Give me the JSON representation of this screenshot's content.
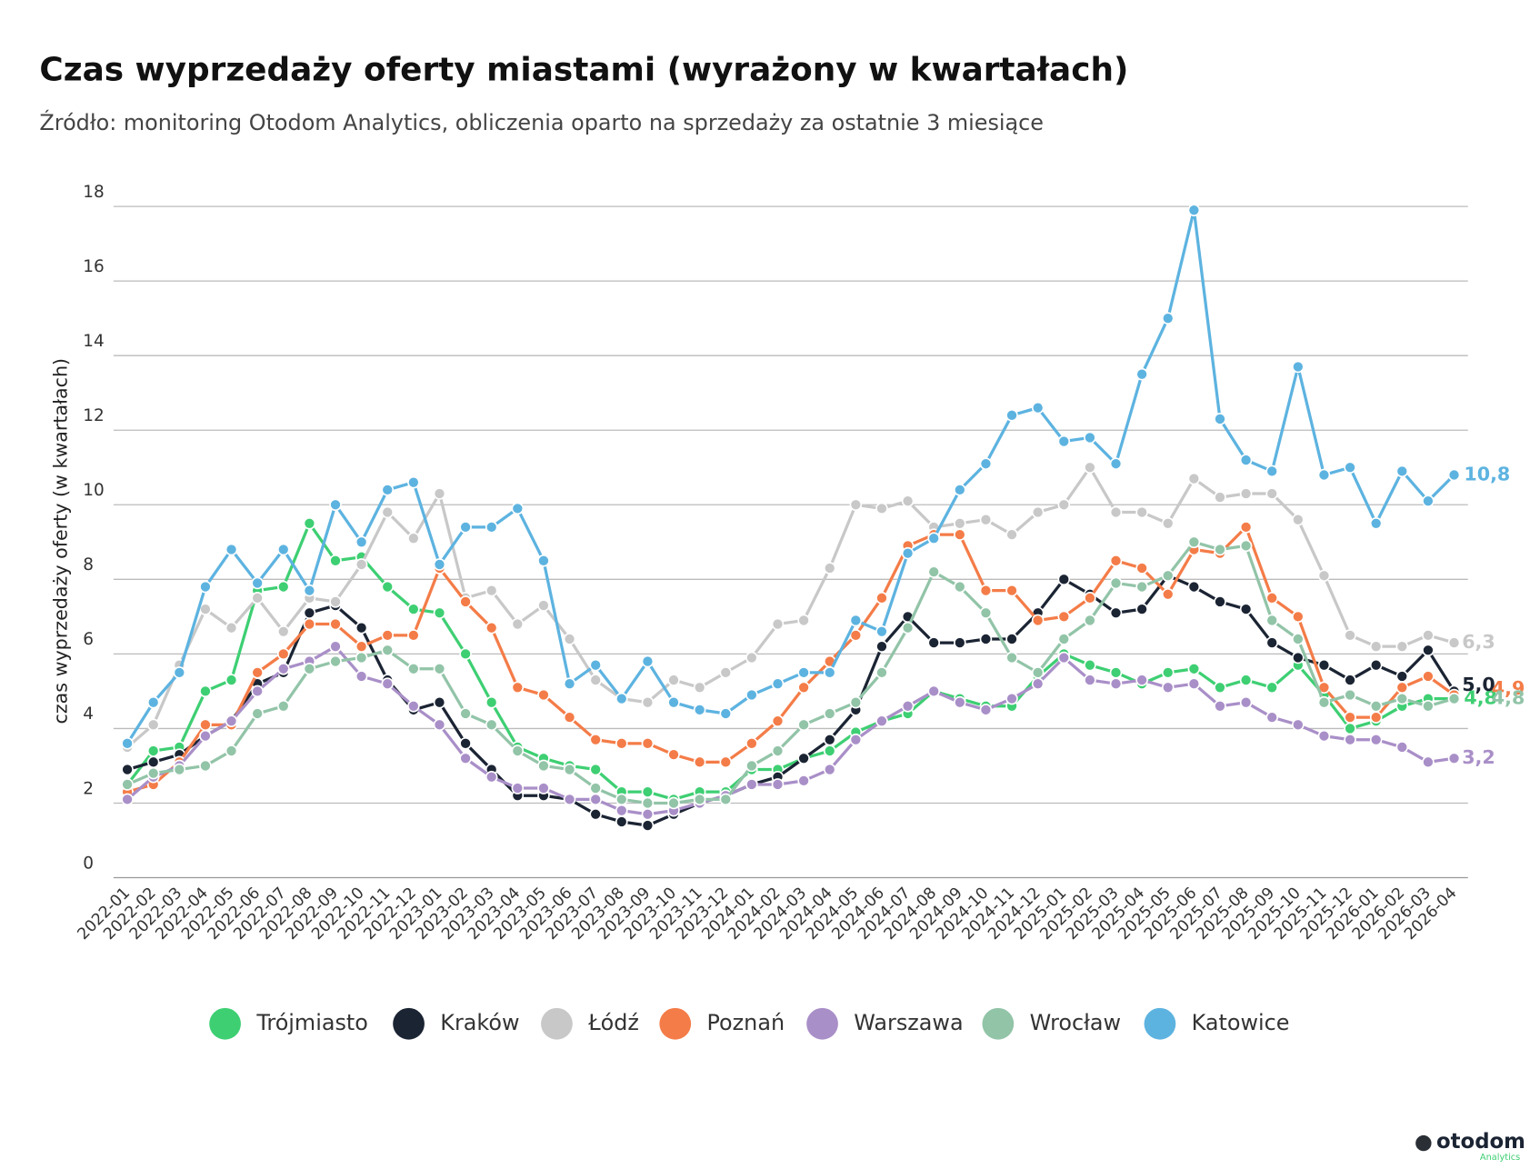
{
  "chart_data": {
    "type": "line",
    "title": "Czas wyprzedaży oferty miastami (wyrażony w kwartałach)",
    "subtitle": "Źródło: monitoring Otodom Analytics, obliczenia oparto na sprzedaży za ostatnie 3 miesiące",
    "y_label": "czas wyprzedaży oferty (w kwartałach)",
    "brand": "otodom",
    "brand_sub": "Analytics",
    "ylim": [
      0,
      18
    ],
    "yticks": [
      0,
      2,
      4,
      6,
      8,
      10,
      12,
      14,
      16,
      18
    ],
    "grid": true,
    "categories": [
      "2022-01",
      "2022-02",
      "2022-03",
      "2022-04",
      "2022-05",
      "2022-06",
      "2022-07",
      "2022-08",
      "2022-09",
      "2022-10",
      "2022-11",
      "2022-12",
      "2023-01",
      "2023-02",
      "2023-03",
      "2023-04",
      "2023-05",
      "2023-06",
      "2023-07",
      "2023-08",
      "2023-09",
      "2023-10",
      "2023-11",
      "2023-12",
      "2024-01",
      "2024-02",
      "2024-03",
      "2024-04",
      "2024-05",
      "2024-06",
      "2024-07",
      "2024-08",
      "2024-09",
      "2024-10",
      "2024-11",
      "2024-12",
      "2025-01",
      "2025-02",
      "2025-03",
      "2025-04",
      "2025-05",
      "2025-06",
      "2025-07",
      "2025-08",
      "2025-09",
      "2025-10",
      "2025-11",
      "2025-12",
      "2026-01",
      "2026-02",
      "2026-03",
      "2026-04"
    ],
    "series": [
      {
        "name": "Trójmiasto",
        "color": "#3ecf73",
        "values": [
          2.5,
          3.4,
          3.5,
          5.0,
          5.3,
          7.7,
          7.8,
          9.5,
          8.5,
          8.6,
          7.8,
          7.2,
          7.1,
          6.0,
          4.7,
          3.5,
          3.2,
          3.0,
          2.9,
          2.3,
          2.3,
          2.1,
          2.3,
          2.3,
          2.9,
          2.9,
          3.2,
          3.4,
          3.9,
          4.2,
          4.4,
          5.0,
          4.8,
          4.6,
          4.6,
          5.4,
          6.0,
          5.7,
          5.5,
          5.2,
          5.5,
          5.6,
          5.1,
          5.3,
          5.1,
          5.7,
          4.9,
          4.0,
          4.2,
          4.6,
          4.8,
          4.8
        ],
        "value_labels": [
          null,
          null,
          null,
          null,
          null,
          null,
          null,
          null,
          null,
          null,
          null,
          null,
          null,
          null,
          null,
          null,
          null,
          null,
          null,
          null,
          null,
          null,
          null,
          null,
          null,
          null,
          null,
          null,
          null,
          null,
          null,
          null,
          null,
          null,
          null,
          null,
          null,
          null,
          null,
          null,
          null,
          null,
          null,
          null,
          null,
          null,
          null,
          null,
          null,
          null,
          null,
          "4,8"
        ]
      },
      {
        "name": "Kraków",
        "color": "#1b2433",
        "values": [
          2.9,
          3.1,
          3.3,
          3.8,
          4.2,
          5.2,
          5.5,
          7.1,
          7.3,
          6.7,
          5.3,
          4.5,
          4.7,
          3.6,
          2.9,
          2.2,
          2.2,
          2.1,
          1.7,
          1.5,
          1.4,
          1.7,
          2.0,
          2.2,
          2.5,
          2.7,
          3.2,
          3.7,
          4.5,
          6.2,
          7.0,
          6.3,
          6.3,
          6.4,
          6.4,
          7.1,
          8.0,
          7.6,
          7.1,
          7.2,
          8.1,
          7.8,
          7.4,
          7.2,
          6.3,
          5.9,
          5.7,
          5.3,
          5.7,
          5.4,
          6.1,
          5.0
        ],
        "value_labels": [
          null,
          null,
          null,
          null,
          null,
          null,
          null,
          null,
          null,
          null,
          null,
          null,
          null,
          null,
          null,
          null,
          null,
          null,
          null,
          null,
          null,
          null,
          null,
          null,
          null,
          null,
          null,
          null,
          null,
          null,
          null,
          null,
          null,
          null,
          null,
          null,
          null,
          null,
          null,
          null,
          null,
          null,
          null,
          null,
          null,
          null,
          null,
          null,
          null,
          null,
          null,
          "5,0"
        ]
      },
      {
        "name": "Łódź",
        "color": "#c8c8c8",
        "values": [
          3.5,
          4.1,
          5.7,
          7.2,
          6.7,
          7.5,
          6.6,
          7.5,
          7.4,
          8.4,
          9.8,
          9.1,
          10.3,
          7.5,
          7.7,
          6.8,
          7.3,
          6.4,
          5.3,
          4.8,
          4.7,
          5.3,
          5.1,
          5.5,
          5.9,
          6.8,
          6.9,
          8.3,
          10.0,
          9.9,
          10.1,
          9.4,
          9.5,
          9.6,
          9.2,
          9.8,
          10.0,
          11.0,
          9.8,
          9.8,
          9.5,
          10.7,
          10.2,
          10.3,
          10.3,
          9.6,
          8.1,
          6.5,
          6.2,
          6.2,
          6.5,
          6.3
        ],
        "value_labels": [
          null,
          null,
          null,
          null,
          null,
          null,
          null,
          null,
          null,
          null,
          null,
          null,
          null,
          null,
          null,
          null,
          null,
          null,
          null,
          null,
          null,
          null,
          null,
          null,
          null,
          null,
          null,
          null,
          null,
          null,
          null,
          null,
          null,
          null,
          null,
          null,
          null,
          null,
          null,
          null,
          null,
          null,
          null,
          null,
          null,
          null,
          null,
          null,
          null,
          null,
          null,
          "6,3"
        ]
      },
      {
        "name": "Poznań",
        "color": "#f47c48",
        "values": [
          2.3,
          2.5,
          3.1,
          4.1,
          4.1,
          5.5,
          6.0,
          6.8,
          6.8,
          6.2,
          6.5,
          6.5,
          8.3,
          7.4,
          6.7,
          5.1,
          4.9,
          4.3,
          3.7,
          3.6,
          3.6,
          3.3,
          3.1,
          3.1,
          3.6,
          4.2,
          5.1,
          5.8,
          6.5,
          7.5,
          8.9,
          9.2,
          9.2,
          7.7,
          7.7,
          6.9,
          7.0,
          7.5,
          8.5,
          8.3,
          7.6,
          8.8,
          8.7,
          9.4,
          7.5,
          7.0,
          5.1,
          4.3,
          4.3,
          5.1,
          5.4,
          4.9
        ],
        "value_labels": [
          null,
          null,
          null,
          null,
          null,
          null,
          null,
          null,
          null,
          null,
          null,
          null,
          null,
          null,
          null,
          null,
          null,
          null,
          null,
          null,
          null,
          null,
          null,
          null,
          null,
          null,
          null,
          null,
          null,
          null,
          null,
          null,
          null,
          null,
          null,
          null,
          null,
          null,
          null,
          null,
          null,
          null,
          null,
          null,
          null,
          null,
          null,
          null,
          null,
          null,
          null,
          "4,9"
        ]
      },
      {
        "name": "Warszawa",
        "color": "#a98fc8",
        "values": [
          2.1,
          2.7,
          3.0,
          3.8,
          4.2,
          5.0,
          5.6,
          5.8,
          6.2,
          5.4,
          5.2,
          4.6,
          4.1,
          3.2,
          2.7,
          2.4,
          2.4,
          2.1,
          2.1,
          1.8,
          1.7,
          1.8,
          2.0,
          2.2,
          2.5,
          2.5,
          2.6,
          2.9,
          3.7,
          4.2,
          4.6,
          5.0,
          4.7,
          4.5,
          4.8,
          5.2,
          5.9,
          5.3,
          5.2,
          5.3,
          5.1,
          5.2,
          4.6,
          4.7,
          4.3,
          4.1,
          3.8,
          3.7,
          3.7,
          3.5,
          3.1,
          3.2
        ],
        "value_labels": [
          null,
          null,
          null,
          null,
          null,
          null,
          null,
          null,
          null,
          null,
          null,
          null,
          null,
          null,
          null,
          null,
          null,
          null,
          null,
          null,
          null,
          null,
          null,
          null,
          null,
          null,
          null,
          null,
          null,
          null,
          null,
          null,
          null,
          null,
          null,
          null,
          null,
          null,
          null,
          null,
          null,
          null,
          null,
          null,
          null,
          null,
          null,
          null,
          null,
          null,
          null,
          "3,2"
        ]
      },
      {
        "name": "Wrocław",
        "color": "#92c4a8",
        "values": [
          2.5,
          2.8,
          2.9,
          3.0,
          3.4,
          4.4,
          4.6,
          5.6,
          5.8,
          5.9,
          6.1,
          5.6,
          5.6,
          4.4,
          4.1,
          3.4,
          3.0,
          2.9,
          2.4,
          2.1,
          2.0,
          2.0,
          2.1,
          2.1,
          3.0,
          3.4,
          4.1,
          4.4,
          4.7,
          5.5,
          6.7,
          8.2,
          7.8,
          7.1,
          5.9,
          5.5,
          6.4,
          6.9,
          7.9,
          7.8,
          8.1,
          9.0,
          8.8,
          8.9,
          6.9,
          6.4,
          4.7,
          4.9,
          4.6,
          4.8,
          4.6,
          4.8
        ],
        "value_labels": [
          null,
          null,
          null,
          null,
          null,
          null,
          null,
          null,
          null,
          null,
          null,
          null,
          null,
          null,
          null,
          null,
          null,
          null,
          null,
          null,
          null,
          null,
          null,
          null,
          null,
          null,
          null,
          null,
          null,
          null,
          null,
          null,
          null,
          null,
          null,
          null,
          null,
          null,
          null,
          null,
          null,
          null,
          null,
          null,
          null,
          null,
          null,
          null,
          null,
          null,
          null,
          "4,8"
        ]
      },
      {
        "name": "Katowice",
        "color": "#5db3e0",
        "values": [
          3.6,
          4.7,
          5.5,
          7.8,
          8.8,
          7.9,
          8.8,
          7.7,
          10.0,
          9.0,
          10.4,
          10.6,
          8.4,
          9.4,
          9.4,
          9.9,
          8.5,
          5.2,
          5.7,
          4.8,
          5.8,
          4.7,
          4.5,
          4.4,
          4.9,
          5.2,
          5.5,
          5.5,
          6.9,
          6.6,
          8.7,
          9.1,
          10.4,
          11.1,
          12.4,
          12.6,
          11.7,
          11.8,
          11.1,
          13.5,
          15.0,
          17.9,
          12.3,
          11.2,
          10.9,
          13.7,
          10.8,
          11.0,
          9.5,
          10.9,
          10.1,
          10.8
        ],
        "value_labels": [
          null,
          null,
          null,
          null,
          null,
          null,
          null,
          null,
          null,
          null,
          null,
          null,
          null,
          null,
          null,
          null,
          null,
          null,
          null,
          null,
          null,
          null,
          null,
          null,
          null,
          null,
          null,
          null,
          null,
          null,
          null,
          null,
          null,
          null,
          null,
          null,
          null,
          null,
          null,
          null,
          null,
          null,
          null,
          null,
          null,
          null,
          null,
          null,
          null,
          null,
          null,
          "10,8"
        ]
      }
    ]
  }
}
